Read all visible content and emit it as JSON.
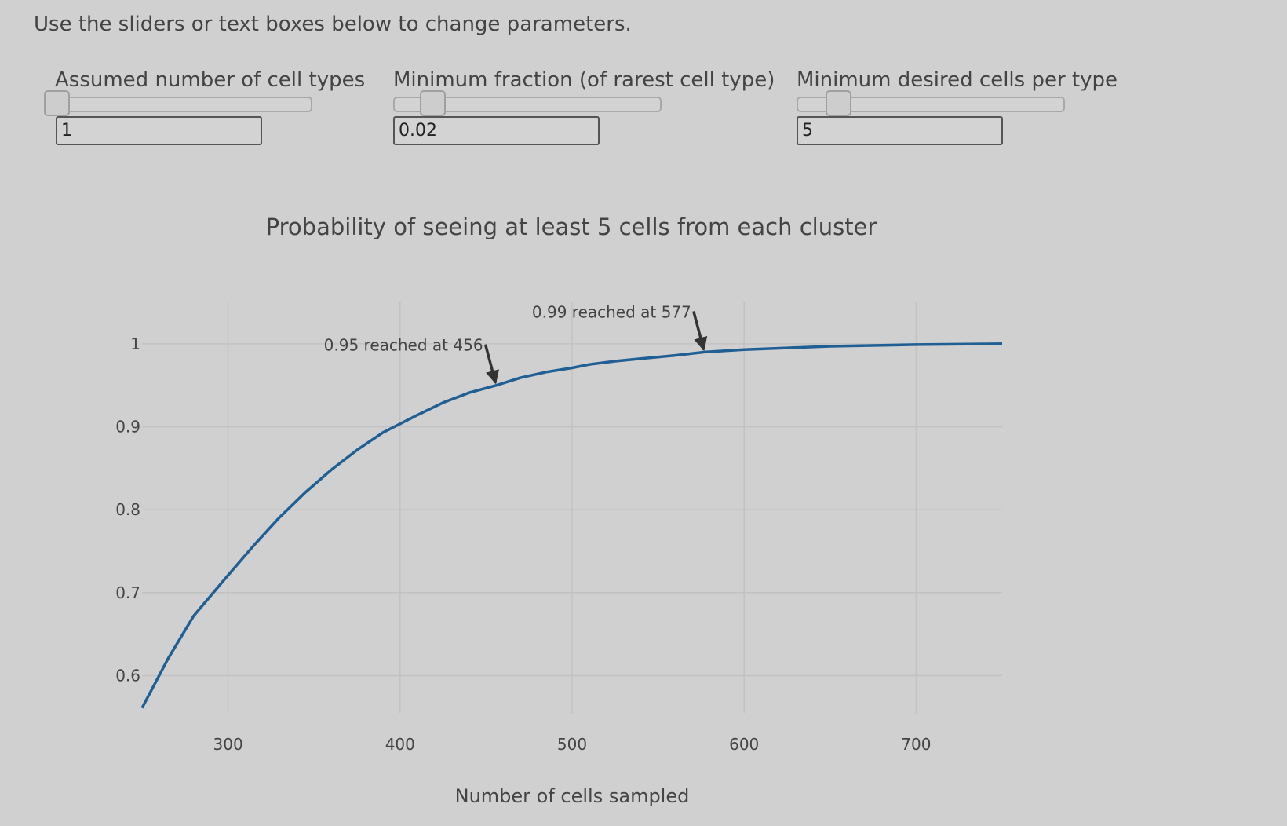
{
  "instructions": "Use the sliders or text boxes below to change parameters.",
  "controls": [
    {
      "label": "Assumed number of cell types",
      "value": "1",
      "slider_fraction": 0.0
    },
    {
      "label": "Minimum fraction (of rarest cell type)",
      "value": "0.02",
      "slider_fraction": 0.11
    },
    {
      "label": "Minimum desired cells per type",
      "value": "5",
      "slider_fraction": 0.12
    }
  ],
  "colors": {
    "background": "#d0d0d0",
    "line": "#1f5f94",
    "grid": "#c2c2c2",
    "text": "#444444",
    "arrow": "#333333"
  },
  "chart_data": {
    "type": "line",
    "title": "Probability of seeing at least 5 cells from each cluster",
    "xlabel": "Number of cells sampled",
    "ylabel": "",
    "xlim": [
      250,
      750
    ],
    "ylim": [
      0.555,
      1.05
    ],
    "grid": true,
    "legend": "none",
    "x_ticks": [
      300,
      400,
      500,
      600,
      700
    ],
    "x_tick_labels": [
      "300",
      "400",
      "500",
      "600",
      "700"
    ],
    "y_ticks": [
      0.6,
      0.7,
      0.8,
      0.9,
      1.0
    ],
    "y_tick_labels": [
      "0.6",
      "0.7",
      "0.8",
      "0.9",
      "1"
    ],
    "series": [
      {
        "x": [
          250,
          265,
          280,
          300,
          315,
          330,
          345,
          360,
          375,
          390,
          410,
          425,
          440,
          456,
          470,
          485,
          500,
          510,
          525,
          540,
          560,
          577,
          600,
          625,
          650,
          700,
          750
        ],
        "y": [
          0.561,
          0.62,
          0.672,
          0.721,
          0.757,
          0.791,
          0.821,
          0.848,
          0.872,
          0.893,
          0.914,
          0.929,
          0.941,
          0.95,
          0.959,
          0.966,
          0.971,
          0.975,
          0.979,
          0.982,
          0.986,
          0.99,
          0.993,
          0.995,
          0.997,
          0.999,
          1.0
        ]
      }
    ],
    "annotations": [
      {
        "text": "0.95 reached at 456",
        "x": 456,
        "y": 0.95
      },
      {
        "text": "0.99 reached at 577",
        "x": 577,
        "y": 0.99
      }
    ]
  }
}
